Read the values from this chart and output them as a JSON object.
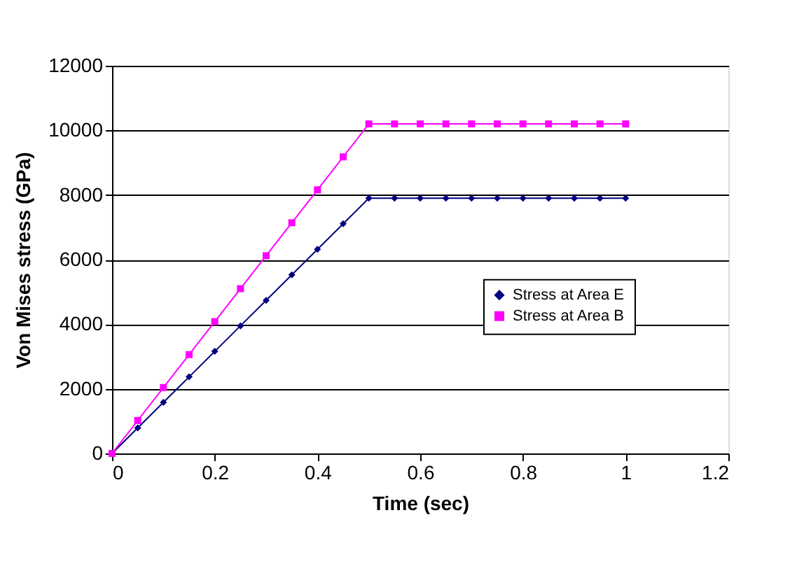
{
  "chart_data": {
    "type": "line",
    "xlabel": "Time (sec)",
    "ylabel": "Von Mises stress (GPa)",
    "x": [
      0,
      0.05,
      0.1,
      0.15,
      0.2,
      0.25,
      0.3,
      0.35,
      0.4,
      0.45,
      0.5,
      0.55,
      0.6,
      0.65,
      0.7,
      0.75,
      0.8,
      0.85,
      0.9,
      0.95,
      1
    ],
    "series": [
      {
        "name": "Stress at Area E",
        "color": "#000080",
        "marker": "diamond",
        "values": [
          0,
          790,
          1580,
          2370,
          3160,
          3950,
          4740,
          5530,
          6320,
          7110,
          7900,
          7900,
          7900,
          7900,
          7900,
          7900,
          7900,
          7900,
          7900,
          7900,
          7900
        ]
      },
      {
        "name": "Stress at Area B",
        "color": "#ff00ff",
        "marker": "square",
        "values": [
          0,
          1020,
          2040,
          3060,
          4080,
          5100,
          6120,
          7140,
          8160,
          9180,
          10200,
          10200,
          10200,
          10200,
          10200,
          10200,
          10200,
          10200,
          10200,
          10200,
          10200
        ]
      }
    ],
    "xlim": [
      0,
      1.2
    ],
    "xticks": [
      0,
      0.2,
      0.4,
      0.6,
      0.8,
      1,
      1.2
    ],
    "ylim": [
      0,
      12000
    ],
    "yticks": [
      0,
      2000,
      4000,
      6000,
      8000,
      10000,
      12000
    ],
    "grid": "y",
    "legend": "right",
    "line_style": "solid"
  }
}
